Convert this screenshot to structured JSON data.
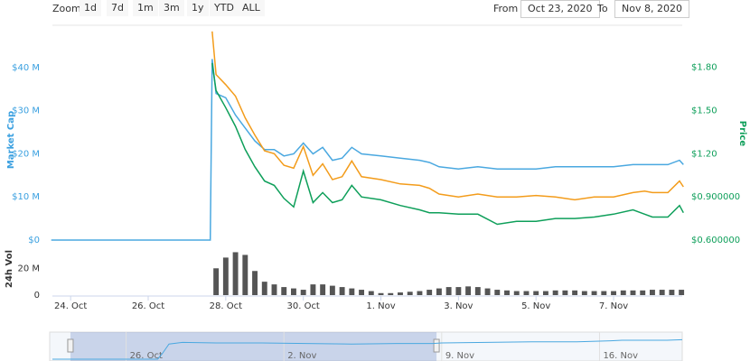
{
  "toolbar": {
    "zoom_label": "Zoom",
    "buttons": [
      "1d",
      "7d",
      "1m",
      "3m",
      "1y",
      "YTD",
      "ALL"
    ],
    "from_label": "From",
    "from": "Oct 23, 2020",
    "to_label": "To",
    "to": "Nov 8, 2020"
  },
  "chart_data": [
    {
      "type": "line",
      "ylabel": "Market Cap",
      "y2label": "Price",
      "x": [
        23.5,
        24,
        25,
        26,
        27,
        27.6,
        27.65,
        27.75,
        28,
        28.25,
        28.5,
        28.75,
        29,
        29.25,
        29.5,
        29.75,
        30,
        30.25,
        30.5,
        30.75,
        31,
        31.25,
        31.5,
        32,
        32.5,
        33,
        33.25,
        33.5,
        34,
        34.5,
        35,
        35.5,
        36,
        36.5,
        37,
        37.5,
        38,
        38.5,
        38.8,
        39,
        39.25,
        39.4,
        39.7,
        39.8
      ],
      "xlim": [
        23.53,
        39.77
      ],
      "ylim": [
        0,
        49.4
      ],
      "yticks": [
        {
          "value": 0,
          "label": "$0"
        },
        {
          "value": 10,
          "label": "$10 M"
        },
        {
          "value": 20,
          "label": "$20 M"
        },
        {
          "value": 30,
          "label": "$30 M"
        },
        {
          "value": 40,
          "label": "$40 M"
        }
      ],
      "y2lim": [
        0.6,
        2.08
      ],
      "y2ticks": [
        {
          "value": 0.6,
          "label": "$0.600000"
        },
        {
          "value": 0.9,
          "label": "$0.900000"
        },
        {
          "value": 1.2,
          "label": "$1.20"
        },
        {
          "value": 1.5,
          "label": "$1.50"
        },
        {
          "value": 1.8,
          "label": "$1.80"
        }
      ],
      "series": [
        {
          "color": "#4aa8e0",
          "values": [
            0,
            0,
            0,
            0,
            0,
            0,
            42,
            34,
            33,
            29,
            26,
            23,
            21,
            21,
            19.5,
            20,
            22.5,
            20,
            21.5,
            18.5,
            19,
            21.5,
            20,
            19.5,
            19,
            18.5,
            18,
            17,
            16.5,
            17,
            16.5,
            16.5,
            16.5,
            17,
            17,
            17,
            17,
            17.5,
            17.5,
            17.5,
            17.5,
            17.5,
            18.5,
            17.5
          ]
        },
        {
          "color": "#f39c1b",
          "axis": "y2",
          "values": [
            null,
            null,
            null,
            null,
            null,
            null,
            2.05,
            1.75,
            1.68,
            1.6,
            1.45,
            1.33,
            1.22,
            1.2,
            1.12,
            1.1,
            1.25,
            1.05,
            1.13,
            1.02,
            1.04,
            1.15,
            1.04,
            1.02,
            0.99,
            0.98,
            0.96,
            0.92,
            0.9,
            0.92,
            0.9,
            0.9,
            0.91,
            0.9,
            0.88,
            0.9,
            0.9,
            0.93,
            0.94,
            0.93,
            0.93,
            0.93,
            1.01,
            0.97
          ]
        },
        {
          "color": "#0e9f5a",
          "axis": "y2",
          "values": [
            null,
            null,
            null,
            null,
            null,
            null,
            1.83,
            1.64,
            1.52,
            1.39,
            1.23,
            1.11,
            1.01,
            0.98,
            0.89,
            0.83,
            1.08,
            0.86,
            0.93,
            0.86,
            0.88,
            0.98,
            0.9,
            0.88,
            0.84,
            0.81,
            0.79,
            0.79,
            0.78,
            0.78,
            0.71,
            0.73,
            0.73,
            0.75,
            0.75,
            0.76,
            0.78,
            0.81,
            0.78,
            0.76,
            0.76,
            0.76,
            0.84,
            0.79
          ]
        }
      ]
    },
    {
      "type": "bar",
      "ylabel": "24h Vol",
      "color": "#555555",
      "x": [
        27.75,
        28,
        28.25,
        28.5,
        28.75,
        29,
        29.25,
        29.5,
        29.75,
        30,
        30.25,
        30.5,
        30.75,
        31,
        31.25,
        31.5,
        31.75,
        32,
        32.25,
        32.5,
        32.75,
        33,
        33.25,
        33.5,
        33.75,
        34,
        34.25,
        34.5,
        34.75,
        35,
        35.25,
        35.5,
        35.75,
        36,
        36.25,
        36.5,
        36.75,
        37,
        37.25,
        37.5,
        37.75,
        38,
        38.25,
        38.5,
        38.75,
        39,
        39.25,
        39.5,
        39.75
      ],
      "values": [
        20,
        28,
        32,
        30,
        18,
        10,
        8,
        6,
        5,
        4,
        8,
        8,
        7,
        6,
        5,
        4,
        3,
        1.5,
        1.5,
        2,
        2.5,
        3,
        4,
        5,
        6,
        6,
        6.5,
        6,
        5,
        4,
        3.5,
        3,
        3,
        3,
        3,
        3.5,
        3.5,
        3.5,
        3,
        3,
        3,
        3,
        3.5,
        3.5,
        3.5,
        4,
        4,
        4,
        4
      ],
      "xlim": [
        23.53,
        39.77
      ],
      "ylim": [
        0,
        35
      ],
      "yticks": [
        0,
        {
          "value": 20,
          "label": "20 M"
        }
      ],
      "xticks": [
        {
          "value": 24,
          "label": "24. Oct"
        },
        {
          "value": 26,
          "label": "26. Oct"
        },
        {
          "value": 28,
          "label": "28. Oct"
        },
        {
          "value": 30,
          "label": "30. Oct"
        },
        {
          "value": 32,
          "label": "1. Nov"
        },
        {
          "value": 34,
          "label": "3. Nov"
        },
        {
          "value": 36,
          "label": "5. Nov"
        },
        {
          "value": 38,
          "label": "7. Nov"
        }
      ]
    },
    {
      "type": "line",
      "color": "#4aa8e0",
      "x": [
        22.73,
        27.4,
        27.6,
        27.9,
        28.5,
        30,
        32,
        34,
        36,
        38,
        39.6,
        40,
        42,
        44,
        46,
        47.5,
        48,
        50,
        50.67
      ],
      "values": [
        0,
        0,
        10,
        28,
        31,
        30,
        30,
        29,
        28,
        29,
        29,
        30,
        31,
        32,
        32,
        34,
        35,
        35,
        36
      ],
      "xlim": [
        22.73,
        50.67
      ],
      "ylim": [
        0,
        45
      ],
      "xticks": [
        {
          "value": 26,
          "label": "26. Oct"
        },
        {
          "value": 33,
          "label": "2. Nov"
        },
        {
          "value": 40,
          "label": "9. Nov"
        },
        {
          "value": 47,
          "label": "16. Nov"
        }
      ]
    }
  ]
}
